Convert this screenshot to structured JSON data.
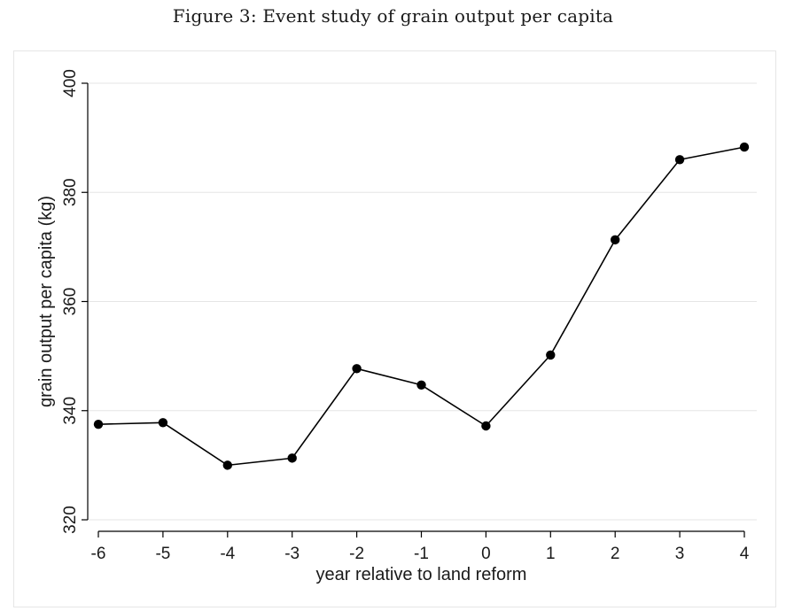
{
  "figure": {
    "title": "Figure 3: Event study of grain output per capita"
  },
  "chart_data": {
    "type": "line",
    "title": "Figure 3: Event study of grain output per capita",
    "xlabel": "year relative to land reform",
    "ylabel": "grain output per capita (kg)",
    "x": [
      -6,
      -5,
      -4,
      -3,
      -2,
      -1,
      0,
      1,
      2,
      3,
      4
    ],
    "xticks": [
      "-6",
      "-5",
      "-4",
      "-3",
      "-2",
      "-1",
      "0",
      "1",
      "2",
      "3",
      "4"
    ],
    "yticks": [
      "320",
      "340",
      "360",
      "380",
      "400"
    ],
    "xlim": [
      -6,
      4
    ],
    "ylim": [
      320,
      400
    ],
    "series": [
      {
        "values": [
          337.5,
          337.8,
          330.0,
          331.3,
          347.7,
          344.7,
          337.2,
          350.2,
          371.3,
          386.0,
          388.3
        ]
      }
    ],
    "grid": "horizontal",
    "colors": {
      "line": "#000000",
      "marker": "#000000",
      "grid": "#e5e5e5",
      "axis": "#000000"
    }
  }
}
